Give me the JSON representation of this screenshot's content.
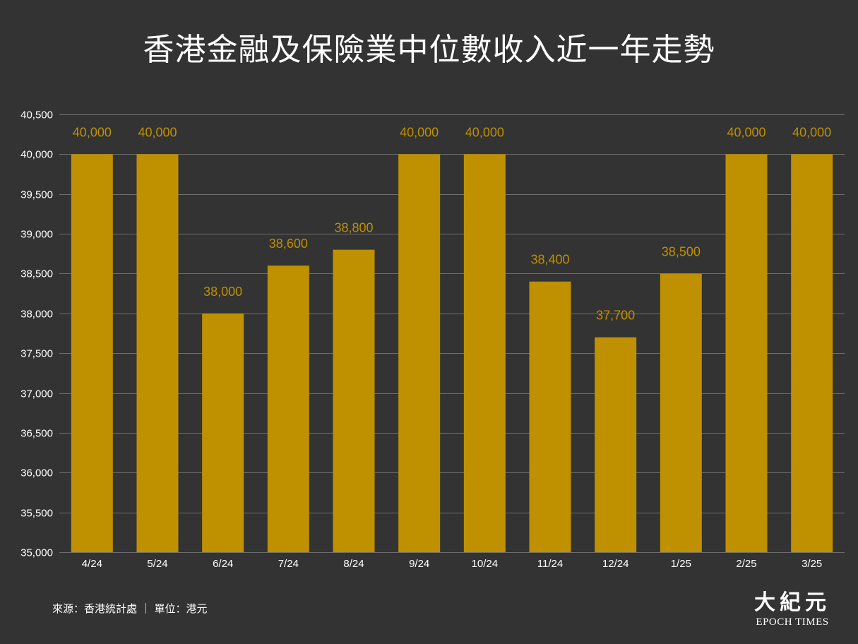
{
  "colors": {
    "background": "#333333",
    "bar": "#BF9000",
    "data_label": "#BF9000",
    "grid": "#6E6E6E",
    "text": "#FFFFFF"
  },
  "footer": {
    "text": "來源：香港統計處 ｜ 單位：港元"
  },
  "logo": {
    "chinese": "大紀元",
    "english": "EPOCH TIMES"
  },
  "chart_data": {
    "type": "bar",
    "title": "香港金融及保險業中位數收入近一年走勢",
    "categories": [
      "4/24",
      "5/24",
      "6/24",
      "7/24",
      "8/24",
      "9/24",
      "10/24",
      "11/24",
      "12/24",
      "1/25",
      "2/25",
      "3/25"
    ],
    "values": [
      40000,
      40000,
      38000,
      38600,
      38800,
      40000,
      40000,
      38400,
      37700,
      38500,
      40000,
      40000
    ],
    "data_labels": [
      "40,000",
      "40,000",
      "38,000",
      "38,600",
      "38,800",
      "40,000",
      "40,000",
      "38,400",
      "37,700",
      "38,500",
      "40,000",
      "40,000"
    ],
    "ylim": [
      35000,
      40500
    ],
    "yticks": [
      35000,
      35500,
      36000,
      36500,
      37000,
      37500,
      38000,
      38500,
      39000,
      39500,
      40000,
      40500
    ],
    "ytick_labels": [
      "35,000",
      "35,500",
      "36,000",
      "36,500",
      "37,000",
      "37,500",
      "38,000",
      "38,500",
      "39,000",
      "39,500",
      "40,000",
      "40,500"
    ],
    "xlabel": "",
    "ylabel": "",
    "grid": true,
    "legend": "none"
  }
}
